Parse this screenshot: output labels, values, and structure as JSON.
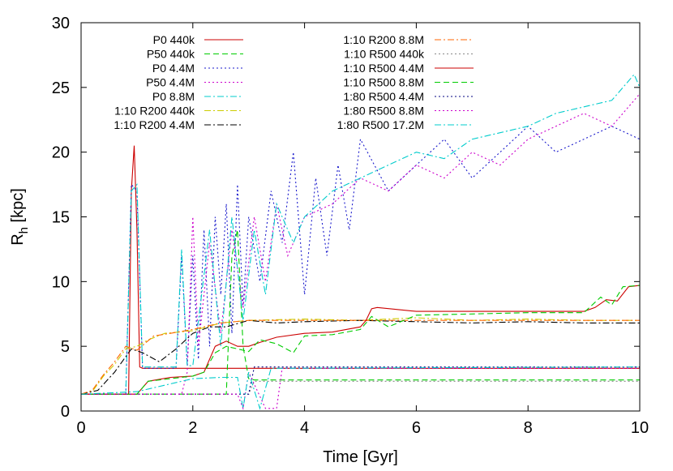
{
  "chart_data": {
    "type": "line",
    "xlabel": "Time [Gyr]",
    "ylabel_main": "R",
    "ylabel_sub": "h",
    "ylabel_unit": " [kpc]",
    "xlim": [
      0,
      10
    ],
    "ylim": [
      0,
      30
    ],
    "xticks": [
      0,
      2,
      4,
      6,
      8,
      10
    ],
    "yticks": [
      0,
      5,
      10,
      15,
      20,
      25,
      30
    ],
    "grid": false,
    "legend_position": "top-left",
    "series": [
      {
        "name": "P0 440k",
        "color": "#cc0000",
        "dash": "solid",
        "x": [
          0,
          0.85,
          0.9,
          0.95,
          1.0,
          1.05,
          1.1,
          10
        ],
        "y": [
          1.3,
          1.3,
          17.0,
          20.5,
          14.0,
          3.4,
          3.3,
          3.3
        ]
      },
      {
        "name": "P50 440k",
        "color": "#00cc00",
        "dash": "dash",
        "x": [
          0,
          2.6,
          2.7,
          2.8,
          2.9,
          3.0,
          3.1,
          10
        ],
        "y": [
          1.3,
          1.3,
          12.0,
          14.0,
          5.0,
          2.5,
          2.4,
          2.4
        ]
      },
      {
        "name": "P0 4.4M",
        "color": "#1a1acc",
        "dash": "dot",
        "x": [
          0,
          0.8,
          0.9,
          1.0,
          1.1,
          1.7,
          1.8,
          1.9,
          2.0,
          2.1,
          2.2,
          2.3,
          2.4,
          2.5,
          2.6,
          2.7,
          2.8,
          2.9,
          3.0,
          3.2,
          3.4,
          3.6,
          3.8,
          4.0,
          4.2,
          4.4,
          4.6,
          4.8,
          5.0,
          5.5,
          6.0,
          6.5,
          7.0,
          7.5,
          8.0,
          8.5,
          9.0,
          9.5,
          10.0
        ],
        "y": [
          1.3,
          1.3,
          17.5,
          17.0,
          3.3,
          3.3,
          12.0,
          3.5,
          12.0,
          4.0,
          14.0,
          5.0,
          15.0,
          9.0,
          16.0,
          6.0,
          17.5,
          8.0,
          15.0,
          10.0,
          17.0,
          13.0,
          20.0,
          9.0,
          18.0,
          12.0,
          19.0,
          14.0,
          21.0,
          17.0,
          19.0,
          21.0,
          18.0,
          20.0,
          22.0,
          20.0,
          21.0,
          22.0,
          21.0
        ]
      },
      {
        "name": "P50 4.4M",
        "color": "#cc00cc",
        "dash": "dot",
        "x": [
          0,
          1.8,
          1.9,
          2.0,
          2.1,
          2.3,
          2.5,
          2.7,
          2.9,
          3.1,
          3.3,
          3.5,
          3.7,
          4.0,
          4.5,
          5.0,
          5.5,
          6.0,
          6.5,
          7.0,
          7.5,
          8.0,
          8.5,
          9.0,
          9.5,
          10.0
        ],
        "y": [
          1.3,
          1.3,
          3.0,
          15.0,
          5.0,
          13.0,
          6.0,
          14.0,
          8.0,
          15.0,
          10.0,
          16.0,
          12.0,
          15.0,
          16.0,
          18.0,
          17.0,
          19.0,
          18.0,
          20.0,
          19.0,
          21.0,
          22.0,
          23.0,
          22.0,
          24.5
        ]
      },
      {
        "name": "P0 8.8M",
        "color": "#00cccc",
        "dash": "dashdot",
        "x": [
          0,
          0.8,
          0.9,
          1.0,
          1.1,
          1.7,
          1.8,
          1.9,
          2.0,
          2.3,
          2.5,
          2.7,
          2.9,
          3.1,
          3.3,
          3.5,
          3.8,
          4.0,
          4.5,
          5.0,
          5.5,
          6.0,
          6.5,
          7.0,
          7.5,
          8.0,
          8.5,
          9.0,
          9.5,
          9.9,
          10.0
        ],
        "y": [
          1.3,
          1.3,
          17.0,
          17.5,
          3.4,
          3.4,
          12.5,
          3.5,
          3.5,
          14.0,
          5.0,
          15.0,
          7.0,
          14.0,
          9.0,
          16.0,
          13.0,
          15.0,
          17.0,
          18.0,
          19.0,
          20.0,
          19.5,
          21.0,
          21.5,
          22.0,
          23.0,
          23.5,
          24.0,
          26.0,
          25.0
        ]
      },
      {
        "name": "1:10 R200 440k",
        "color": "#cccc00",
        "dash": "dashdot",
        "x": [
          0,
          0.2,
          0.4,
          0.6,
          0.8,
          1.0,
          1.2,
          1.5,
          2.0,
          2.5,
          3.0,
          4.0,
          5.0,
          6.0,
          7.0,
          8.0,
          9.0,
          10.0
        ],
        "y": [
          1.3,
          1.5,
          2.7,
          3.6,
          4.8,
          5.0,
          5.5,
          6.0,
          6.2,
          6.8,
          7.0,
          7.1,
          7.0,
          7.2,
          7.0,
          7.1,
          7.0,
          7.0
        ]
      },
      {
        "name": "1:10 R200 4.4M",
        "color": "#000000",
        "dash": "dashdot",
        "x": [
          0,
          0.3,
          0.6,
          0.9,
          1.1,
          1.4,
          1.7,
          2.0,
          2.3,
          2.6,
          3.0,
          3.5,
          4.0,
          5.0,
          6.0,
          7.0,
          8.0,
          9.0,
          10.0
        ],
        "y": [
          1.3,
          1.6,
          3.0,
          4.8,
          4.5,
          3.8,
          4.8,
          6.0,
          6.5,
          6.5,
          7.0,
          6.8,
          6.9,
          7.0,
          6.9,
          6.8,
          6.9,
          6.8,
          6.8
        ]
      },
      {
        "name": "1:10 R200 8.8M",
        "color": "#ff6600",
        "dash": "dashdot",
        "x": [
          0,
          0.2,
          0.4,
          0.6,
          0.8,
          1.0,
          1.3,
          1.6,
          2.0,
          2.5,
          3.0,
          4.0,
          5.0,
          6.0,
          7.0,
          8.0,
          9.0,
          10.0
        ],
        "y": [
          1.3,
          1.6,
          2.8,
          3.8,
          5.0,
          4.7,
          5.8,
          6.0,
          6.3,
          6.8,
          7.0,
          7.0,
          7.0,
          7.0,
          7.0,
          7.0,
          7.0,
          7.0
        ]
      },
      {
        "name": "1:10 R500 440k",
        "color": "#888888",
        "dash": "dot",
        "x": [
          0,
          3.0,
          3.1,
          10.0
        ],
        "y": [
          1.3,
          1.3,
          2.3,
          2.3
        ]
      },
      {
        "name": "1:10 R500 4.4M",
        "color": "#cc0000",
        "dash": "solid",
        "x": [
          0,
          1.0,
          1.2,
          1.6,
          2.0,
          2.2,
          2.4,
          2.6,
          2.8,
          3.0,
          3.2,
          3.5,
          4.0,
          4.5,
          5.0,
          5.1,
          5.2,
          5.3,
          6.0,
          7.0,
          8.0,
          9.0,
          9.2,
          9.4,
          9.6,
          9.8,
          10.0
        ],
        "y": [
          1.3,
          1.3,
          2.3,
          2.6,
          2.7,
          3.0,
          5.0,
          5.4,
          5.0,
          5.0,
          5.3,
          5.7,
          6.0,
          6.1,
          6.5,
          7.0,
          7.9,
          8.0,
          7.7,
          7.7,
          7.7,
          7.7,
          8.0,
          8.6,
          8.5,
          9.6,
          9.7
        ]
      },
      {
        "name": "1:10 R500 8.8M",
        "color": "#00cc00",
        "dash": "dash",
        "x": [
          0,
          1.0,
          1.2,
          1.6,
          2.0,
          2.2,
          2.4,
          2.6,
          2.8,
          3.0,
          3.2,
          3.5,
          3.8,
          4.0,
          4.5,
          5.0,
          5.2,
          5.5,
          6.0,
          7.0,
          8.0,
          9.0,
          9.3,
          9.5,
          9.7,
          10.0
        ],
        "y": [
          1.3,
          1.3,
          2.3,
          2.5,
          2.7,
          3.0,
          4.5,
          5.0,
          4.8,
          4.6,
          5.5,
          5.2,
          4.5,
          5.8,
          5.9,
          6.3,
          7.3,
          6.5,
          7.4,
          7.5,
          7.6,
          7.6,
          8.8,
          8.2,
          9.6,
          9.7
        ]
      },
      {
        "name": "1:80 R500 4.4M",
        "color": "#000080",
        "dash": "dot",
        "x": [
          0,
          3.0,
          3.1,
          10.0
        ],
        "y": [
          1.3,
          1.3,
          3.4,
          3.4
        ]
      },
      {
        "name": "1:80 R500 8.8M",
        "color": "#cc00cc",
        "dash": "dot",
        "x": [
          0,
          2.8,
          2.9,
          3.0,
          3.3,
          3.5,
          3.6,
          10.0
        ],
        "y": [
          1.3,
          1.3,
          0.2,
          3.0,
          0.2,
          0.2,
          3.3,
          3.3
        ]
      },
      {
        "name": "1:80 R500 17.2M",
        "color": "#00cccc",
        "dash": "dashdot",
        "x": [
          0,
          1.0,
          1.5,
          2.0,
          2.5,
          2.8,
          2.9,
          3.0,
          3.2,
          3.4,
          10.0
        ],
        "y": [
          1.3,
          1.5,
          2.0,
          2.5,
          2.6,
          2.6,
          0.2,
          3.0,
          0.2,
          3.3,
          3.4
        ]
      }
    ]
  }
}
